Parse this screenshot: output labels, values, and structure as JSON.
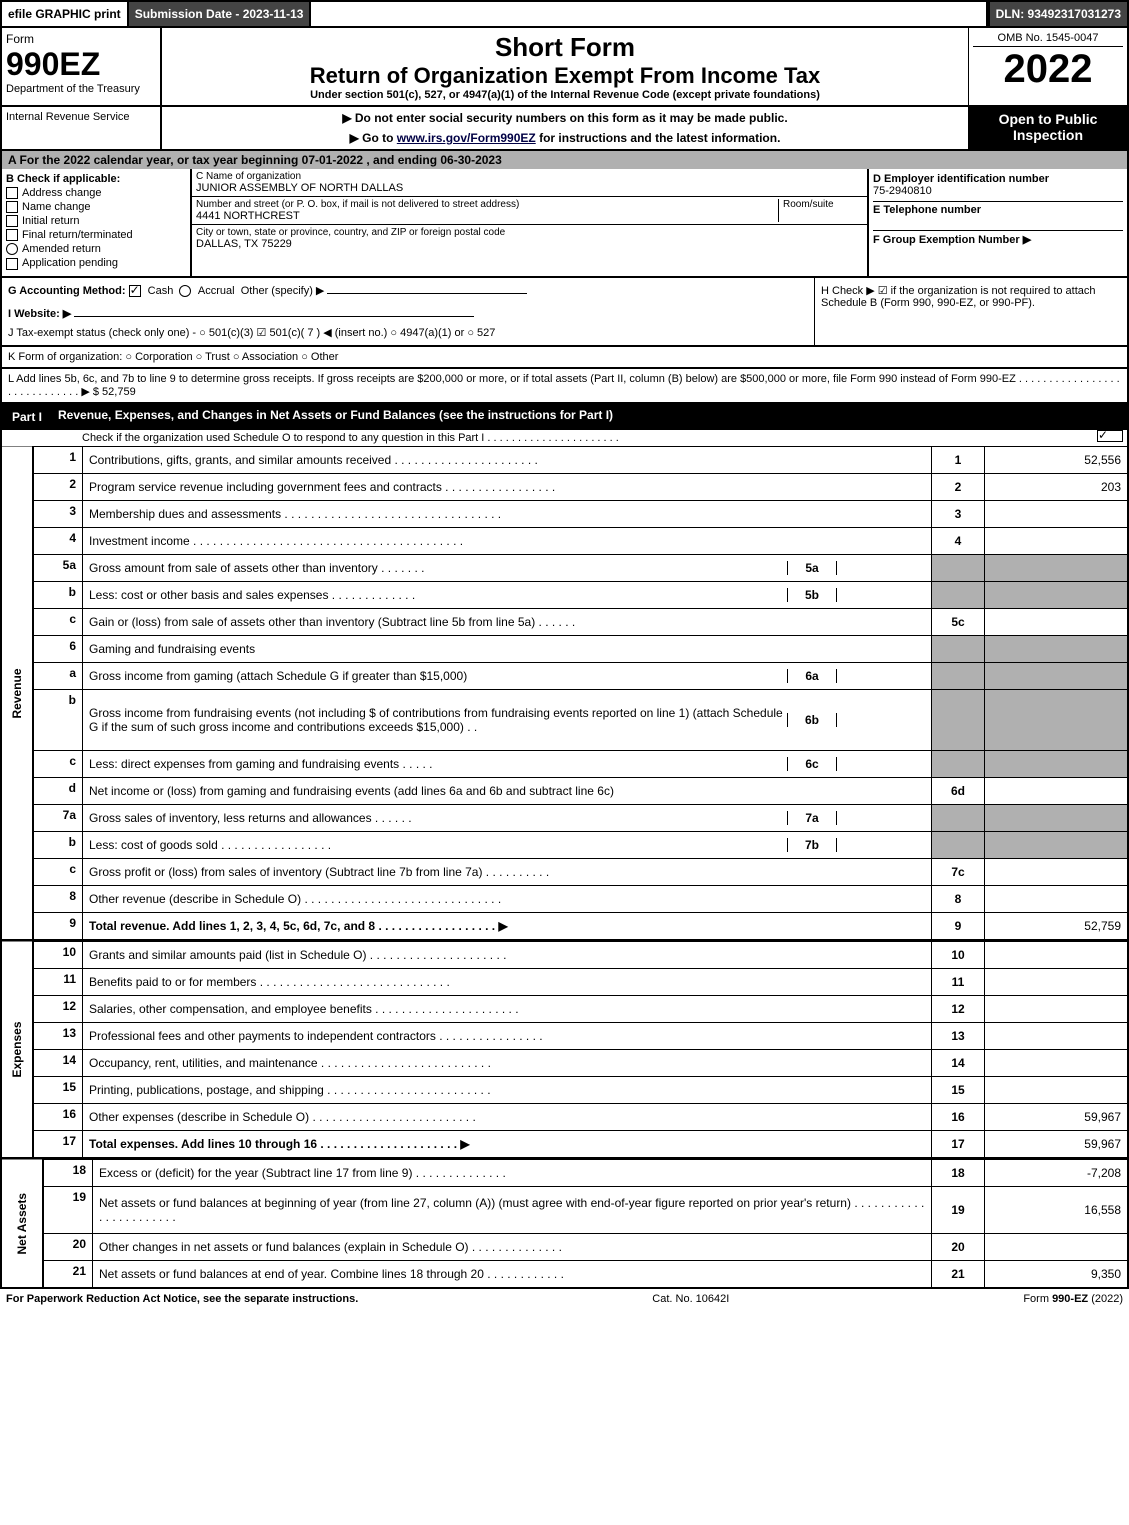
{
  "topbar": {
    "print": "efile GRAPHIC print",
    "submission": "Submission Date - 2023-11-13",
    "dln": "DLN: 93492317031273"
  },
  "header": {
    "form_label": "Form",
    "form_number": "990EZ",
    "dept1": "Department of the Treasury",
    "dept2": "Internal Revenue Service",
    "title1": "Short Form",
    "title2": "Return of Organization Exempt From Income Tax",
    "subtitle": "Under section 501(c), 527, or 4947(a)(1) of the Internal Revenue Code (except private foundations)",
    "note1": "▶ Do not enter social security numbers on this form as it may be made public.",
    "note2": "▶ Go to www.irs.gov/Form990EZ for instructions and the latest information.",
    "omb": "OMB No. 1545-0047",
    "year": "2022",
    "inspection": "Open to Public Inspection"
  },
  "section_a": "A  For the 2022 calendar year, or tax year beginning 07-01-2022 , and ending 06-30-2023",
  "section_b": {
    "label": "B  Check if applicable:",
    "addr": "Address change",
    "name": "Name change",
    "init": "Initial return",
    "final": "Final return/terminated",
    "amend": "Amended return",
    "app": "Application pending"
  },
  "section_c": {
    "name_label": "C Name of organization",
    "name": "JUNIOR ASSEMBLY OF NORTH DALLAS",
    "street_label": "Number and street (or P. O. box, if mail is not delivered to street address)",
    "room_label": "Room/suite",
    "street": "4441 NORTHCREST",
    "city_label": "City or town, state or province, country, and ZIP or foreign postal code",
    "city": "DALLAS, TX  75229"
  },
  "section_d": {
    "label": "D Employer identification number",
    "value": "75-2940810",
    "e_label": "E Telephone number",
    "f_label": "F Group Exemption Number  ▶"
  },
  "section_g": {
    "label": "G Accounting Method:",
    "cash": "Cash",
    "accrual": "Accrual",
    "other": "Other (specify) ▶"
  },
  "section_h": "H  Check ▶ ☑ if the organization is not required to attach Schedule B (Form 990, 990-EZ, or 990-PF).",
  "section_i": "I Website: ▶",
  "section_j": "J Tax-exempt status (check only one) - ○ 501(c)(3)  ☑ 501(c)( 7 ) ◀ (insert no.)  ○ 4947(a)(1) or  ○ 527",
  "section_k": "K Form of organization:  ○ Corporation  ○ Trust  ○ Association  ○ Other",
  "section_l": "L Add lines 5b, 6c, and 7b to line 9 to determine gross receipts. If gross receipts are $200,000 or more, or if total assets (Part II, column (B) below) are $500,000 or more, file Form 990 instead of Form 990-EZ . . . . . . . . . . . . . . . . . . . . . . . . . . . . . ▶ $ 52,759",
  "part1": {
    "label": "Part I",
    "title": "Revenue, Expenses, and Changes in Net Assets or Fund Balances (see the instructions for Part I)",
    "sub": "Check if the organization used Schedule O to respond to any question in this Part I . . . . . . . . . . . . . . . . . . . . . .",
    "side_rev": "Revenue",
    "side_exp": "Expenses",
    "side_net": "Net Assets",
    "rows": [
      {
        "n": "1",
        "desc": "Contributions, gifts, grants, and similar amounts received . . . . . . . . . . . . . . . . . . . . . .",
        "rn": "1",
        "val": "52,556"
      },
      {
        "n": "2",
        "desc": "Program service revenue including government fees and contracts . . . . . . . . . . . . . . . . .",
        "rn": "2",
        "val": "203"
      },
      {
        "n": "3",
        "desc": "Membership dues and assessments . . . . . . . . . . . . . . . . . . . . . . . . . . . . . . . . .",
        "rn": "3",
        "val": ""
      },
      {
        "n": "4",
        "desc": "Investment income . . . . . . . . . . . . . . . . . . . . . . . . . . . . . . . . . . . . . . . . .",
        "rn": "4",
        "val": ""
      },
      {
        "n": "5a",
        "desc": "Gross amount from sale of assets other than inventory . . . . . . .",
        "sub": "5a",
        "subval": "",
        "rn": "",
        "val": "",
        "shaded": true
      },
      {
        "n": "b",
        "desc": "Less: cost or other basis and sales expenses . . . . . . . . . . . . .",
        "sub": "5b",
        "subval": "",
        "rn": "",
        "val": "",
        "shaded": true
      },
      {
        "n": "c",
        "desc": "Gain or (loss) from sale of assets other than inventory (Subtract line 5b from line 5a) . . . . . .",
        "rn": "5c",
        "val": ""
      },
      {
        "n": "6",
        "desc": "Gaming and fundraising events",
        "rn": "",
        "val": "",
        "shaded": true
      },
      {
        "n": "a",
        "desc": "Gross income from gaming (attach Schedule G if greater than $15,000)",
        "sub": "6a",
        "subval": "",
        "rn": "",
        "val": "",
        "shaded": true
      },
      {
        "n": "b",
        "desc": "Gross income from fundraising events (not including $                    of contributions from fundraising events reported on line 1) (attach Schedule G if the sum of such gross income and contributions exceeds $15,000) . .",
        "sub": "6b",
        "subval": "",
        "rn": "",
        "val": "",
        "shaded": true,
        "multi": true
      },
      {
        "n": "c",
        "desc": "Less: direct expenses from gaming and fundraising events . . . . .",
        "sub": "6c",
        "subval": "",
        "rn": "",
        "val": "",
        "shaded": true
      },
      {
        "n": "d",
        "desc": "Net income or (loss) from gaming and fundraising events (add lines 6a and 6b and subtract line 6c)",
        "rn": "6d",
        "val": ""
      },
      {
        "n": "7a",
        "desc": "Gross sales of inventory, less returns and allowances . . . . . .",
        "sub": "7a",
        "subval": "",
        "rn": "",
        "val": "",
        "shaded": true
      },
      {
        "n": "b",
        "desc": "Less: cost of goods sold       . . . . . . . . . . . . . . . . .",
        "sub": "7b",
        "subval": "",
        "rn": "",
        "val": "",
        "shaded": true
      },
      {
        "n": "c",
        "desc": "Gross profit or (loss) from sales of inventory (Subtract line 7b from line 7a) . . . . . . . . . .",
        "rn": "7c",
        "val": ""
      },
      {
        "n": "8",
        "desc": "Other revenue (describe in Schedule O) . . . . . . . . . . . . . . . . . . . . . . . . . . . . . .",
        "rn": "8",
        "val": ""
      },
      {
        "n": "9",
        "desc": "Total revenue. Add lines 1, 2, 3, 4, 5c, 6d, 7c, and 8 . . . . . . . . . . . . . . . . . . ▶",
        "rn": "9",
        "val": "52,759",
        "bold": true
      }
    ],
    "exp_rows": [
      {
        "n": "10",
        "desc": "Grants and similar amounts paid (list in Schedule O) . . . . . . . . . . . . . . . . . . . . .",
        "rn": "10",
        "val": ""
      },
      {
        "n": "11",
        "desc": "Benefits paid to or for members     . . . . . . . . . . . . . . . . . . . . . . . . . . . . .",
        "rn": "11",
        "val": ""
      },
      {
        "n": "12",
        "desc": "Salaries, other compensation, and employee benefits . . . . . . . . . . . . . . . . . . . . . .",
        "rn": "12",
        "val": ""
      },
      {
        "n": "13",
        "desc": "Professional fees and other payments to independent contractors . . . . . . . . . . . . . . . .",
        "rn": "13",
        "val": ""
      },
      {
        "n": "14",
        "desc": "Occupancy, rent, utilities, and maintenance . . . . . . . . . . . . . . . . . . . . . . . . . .",
        "rn": "14",
        "val": ""
      },
      {
        "n": "15",
        "desc": "Printing, publications, postage, and shipping . . . . . . . . . . . . . . . . . . . . . . . . .",
        "rn": "15",
        "val": ""
      },
      {
        "n": "16",
        "desc": "Other expenses (describe in Schedule O)     . . . . . . . . . . . . . . . . . . . . . . . . .",
        "rn": "16",
        "val": "59,967"
      },
      {
        "n": "17",
        "desc": "Total expenses. Add lines 10 through 16     . . . . . . . . . . . . . . . . . . . . . ▶",
        "rn": "17",
        "val": "59,967",
        "bold": true
      }
    ],
    "net_rows": [
      {
        "n": "18",
        "desc": "Excess or (deficit) for the year (Subtract line 17 from line 9)      . . . . . . . . . . . . . .",
        "rn": "18",
        "val": "-7,208"
      },
      {
        "n": "19",
        "desc": "Net assets or fund balances at beginning of year (from line 27, column (A)) (must agree with end-of-year figure reported on prior year's return) . . . . . . . . . . . . . . . . . . . . . . .",
        "rn": "19",
        "val": "16,558",
        "multi": true
      },
      {
        "n": "20",
        "desc": "Other changes in net assets or fund balances (explain in Schedule O) . . . . . . . . . . . . . .",
        "rn": "20",
        "val": ""
      },
      {
        "n": "21",
        "desc": "Net assets or fund balances at end of year. Combine lines 18 through 20 . . . . . . . . . . . .",
        "rn": "21",
        "val": "9,350"
      }
    ]
  },
  "footer": {
    "left": "For Paperwork Reduction Act Notice, see the separate instructions.",
    "mid": "Cat. No. 10642I",
    "right": "Form 990-EZ (2022)"
  }
}
